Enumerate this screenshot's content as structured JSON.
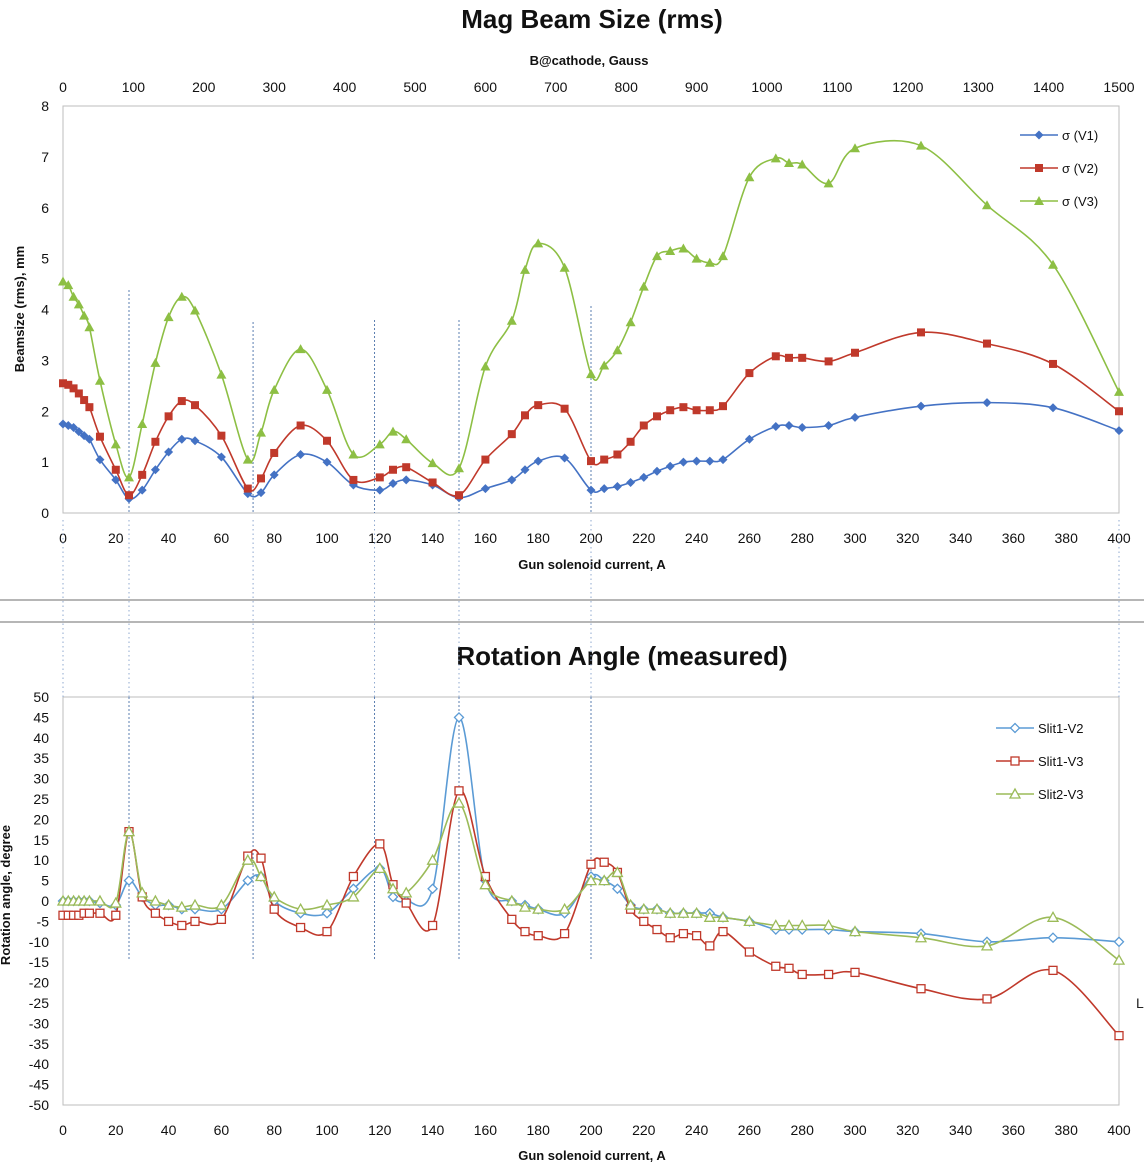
{
  "edge_label": "L",
  "chart_data": [
    {
      "type": "line",
      "title": "Mag Beam Size (rms)",
      "top_axis_label": "B@cathode, Gauss",
      "top_axis_ticks": [
        "0",
        "100",
        "200",
        "300",
        "400",
        "500",
        "600",
        "700",
        "800",
        "900",
        "1000",
        "1100",
        "1200",
        "1300",
        "1400",
        "1500"
      ],
      "xlabel": "Gun solenoid current, A",
      "ylabel": "Beamsize (rms), mm",
      "xlim": [
        0,
        400
      ],
      "ylim": [
        0,
        8
      ],
      "x_ticks": [
        "0",
        "20",
        "40",
        "60",
        "80",
        "100",
        "120",
        "140",
        "160",
        "180",
        "200",
        "220",
        "240",
        "260",
        "280",
        "300",
        "320",
        "340",
        "360",
        "380",
        "400"
      ],
      "y_ticks": [
        "0",
        "1",
        "2",
        "3",
        "4",
        "5",
        "6",
        "7",
        "8"
      ],
      "grid": false,
      "legend_position": "top-right",
      "series": [
        {
          "name": "σ (V1)",
          "color": "#4472c4",
          "marker": "diamond",
          "x": [
            0,
            2,
            4,
            6,
            8,
            10,
            14,
            20,
            25,
            30,
            35,
            40,
            45,
            50,
            60,
            70,
            75,
            80,
            90,
            100,
            110,
            120,
            125,
            130,
            140,
            150,
            160,
            170,
            175,
            180,
            190,
            200,
            205,
            210,
            215,
            220,
            225,
            230,
            235,
            240,
            245,
            250,
            260,
            270,
            275,
            280,
            290,
            300,
            325,
            350,
            375,
            400
          ],
          "y": [
            1.75,
            1.72,
            1.68,
            1.6,
            1.52,
            1.45,
            1.05,
            0.65,
            0.28,
            0.45,
            0.85,
            1.2,
            1.45,
            1.42,
            1.1,
            0.38,
            0.4,
            0.75,
            1.15,
            1.0,
            0.55,
            0.45,
            0.58,
            0.65,
            0.55,
            0.3,
            0.48,
            0.65,
            0.85,
            1.02,
            1.08,
            0.45,
            0.48,
            0.52,
            0.6,
            0.7,
            0.82,
            0.92,
            1.0,
            1.02,
            1.02,
            1.05,
            1.45,
            1.7,
            1.72,
            1.68,
            1.72,
            1.88,
            2.1,
            2.17,
            2.07,
            1.62
          ]
        },
        {
          "name": "σ (V2)",
          "color": "#c0392b",
          "marker": "square",
          "x": [
            0,
            2,
            4,
            6,
            8,
            10,
            14,
            20,
            25,
            30,
            35,
            40,
            45,
            50,
            60,
            70,
            75,
            80,
            90,
            100,
            110,
            120,
            125,
            130,
            140,
            150,
            160,
            170,
            175,
            180,
            190,
            200,
            205,
            210,
            215,
            220,
            225,
            230,
            235,
            240,
            245,
            250,
            260,
            270,
            275,
            280,
            290,
            300,
            325,
            350,
            375,
            400
          ],
          "y": [
            2.55,
            2.52,
            2.45,
            2.35,
            2.22,
            2.08,
            1.5,
            0.85,
            0.35,
            0.75,
            1.4,
            1.9,
            2.2,
            2.12,
            1.52,
            0.48,
            0.68,
            1.18,
            1.72,
            1.42,
            0.65,
            0.7,
            0.85,
            0.9,
            0.6,
            0.35,
            1.05,
            1.55,
            1.92,
            2.12,
            2.05,
            1.02,
            1.05,
            1.15,
            1.4,
            1.72,
            1.9,
            2.02,
            2.08,
            2.02,
            2.02,
            2.1,
            2.75,
            3.08,
            3.05,
            3.05,
            2.98,
            3.15,
            3.55,
            3.33,
            2.93,
            2.0
          ]
        },
        {
          "name": "σ (V3)",
          "color": "#8dbf44",
          "marker": "triangle",
          "x": [
            0,
            2,
            4,
            6,
            8,
            10,
            14,
            20,
            25,
            30,
            35,
            40,
            45,
            50,
            60,
            70,
            75,
            80,
            90,
            100,
            110,
            120,
            125,
            130,
            140,
            150,
            160,
            170,
            175,
            180,
            190,
            200,
            205,
            210,
            215,
            220,
            225,
            230,
            235,
            240,
            245,
            250,
            260,
            270,
            275,
            280,
            290,
            300,
            325,
            350,
            375,
            400
          ],
          "y": [
            4.55,
            4.48,
            4.25,
            4.1,
            3.88,
            3.65,
            2.6,
            1.35,
            0.7,
            1.75,
            2.95,
            3.85,
            4.25,
            3.98,
            2.72,
            1.05,
            1.58,
            2.42,
            3.22,
            2.42,
            1.15,
            1.35,
            1.6,
            1.45,
            0.98,
            0.88,
            2.88,
            3.78,
            4.78,
            5.3,
            4.82,
            2.73,
            2.9,
            3.2,
            3.75,
            4.45,
            5.05,
            5.15,
            5.2,
            5.0,
            4.92,
            5.05,
            6.6,
            6.97,
            6.88,
            6.85,
            6.48,
            7.17,
            7.22,
            6.05,
            4.88,
            2.38
          ]
        }
      ],
      "vertical_markers": [
        25,
        72,
        118,
        150,
        200
      ]
    },
    {
      "type": "line",
      "title": "Rotation Angle (measured)",
      "xlabel": "Gun solenoid current, A",
      "ylabel": "Rotation angle, degree",
      "xlim": [
        0,
        400
      ],
      "ylim": [
        -50,
        50
      ],
      "x_ticks": [
        "0",
        "20",
        "40",
        "60",
        "80",
        "100",
        "120",
        "140",
        "160",
        "180",
        "200",
        "220",
        "240",
        "260",
        "280",
        "300",
        "320",
        "340",
        "360",
        "380",
        "400"
      ],
      "y_ticks": [
        "50",
        "45",
        "40",
        "35",
        "30",
        "25",
        "20",
        "15",
        "10",
        "5",
        "0",
        "-5",
        "-10",
        "-15",
        "-20",
        "-25",
        "-30",
        "-35",
        "-40",
        "-45",
        "-50"
      ],
      "grid": false,
      "legend_position": "top-right",
      "series": [
        {
          "name": "Slit1-V2",
          "color": "#5b9bd5",
          "marker": "diamond-open",
          "x": [
            0,
            2,
            4,
            6,
            8,
            10,
            14,
            20,
            25,
            30,
            35,
            40,
            45,
            50,
            60,
            70,
            75,
            80,
            90,
            100,
            110,
            120,
            125,
            130,
            140,
            150,
            160,
            170,
            175,
            180,
            190,
            200,
            205,
            210,
            215,
            220,
            225,
            230,
            235,
            240,
            245,
            250,
            260,
            270,
            275,
            280,
            290,
            300,
            325,
            350,
            375,
            400
          ],
          "y": [
            0,
            0,
            0,
            0,
            0,
            0,
            -0.5,
            -1,
            5,
            1,
            -1,
            -1,
            -2,
            -2,
            -2,
            5,
            6,
            0,
            -3,
            -3,
            3,
            8,
            1,
            0,
            3,
            45,
            5,
            0,
            -1,
            -2,
            -3,
            6,
            5,
            3,
            -1,
            -2,
            -2,
            -3,
            -3,
            -3,
            -3,
            -4,
            -5,
            -7,
            -7,
            -7,
            -7,
            -7.5,
            -8,
            -10,
            -9,
            -10
          ]
        },
        {
          "name": "Slit1-V3",
          "color": "#c0392b",
          "marker": "square-open",
          "x": [
            0,
            2,
            4,
            6,
            8,
            10,
            14,
            20,
            25,
            30,
            35,
            40,
            45,
            50,
            60,
            70,
            75,
            80,
            90,
            100,
            110,
            120,
            125,
            130,
            140,
            150,
            160,
            170,
            175,
            180,
            190,
            200,
            205,
            210,
            215,
            220,
            225,
            230,
            235,
            240,
            245,
            250,
            260,
            270,
            275,
            280,
            290,
            300,
            325,
            350,
            375,
            400
          ],
          "y": [
            -3.5,
            -3.5,
            -3.5,
            -3.5,
            -3,
            -3,
            -3,
            -3.5,
            17,
            1,
            -3,
            -5,
            -6,
            -5,
            -4.5,
            11,
            10.5,
            -2,
            -6.5,
            -7.5,
            6,
            14,
            4,
            -0.5,
            -6,
            27,
            6,
            -4.5,
            -7.5,
            -8.5,
            -8,
            9,
            9.5,
            7,
            -2,
            -5,
            -7,
            -9,
            -8,
            -8.5,
            -11,
            -7.5,
            -12.5,
            -16,
            -16.5,
            -18,
            -18,
            -17.5,
            -21.5,
            -24,
            -17,
            -33
          ]
        },
        {
          "name": "Slit2-V3",
          "color": "#9bbb59",
          "marker": "triangle-open",
          "x": [
            0,
            2,
            4,
            6,
            8,
            10,
            14,
            20,
            25,
            30,
            35,
            40,
            45,
            50,
            60,
            70,
            75,
            80,
            90,
            100,
            110,
            120,
            125,
            130,
            140,
            150,
            160,
            170,
            175,
            180,
            190,
            200,
            205,
            210,
            215,
            220,
            225,
            230,
            235,
            240,
            245,
            250,
            260,
            270,
            275,
            280,
            290,
            300,
            325,
            350,
            375,
            400
          ],
          "y": [
            0,
            0,
            0,
            0,
            0,
            0,
            0,
            -0.5,
            17,
            2,
            0,
            -1,
            -1.5,
            -1,
            -1,
            10,
            6,
            1,
            -2,
            -1,
            1,
            8,
            3,
            2,
            10,
            24,
            4,
            0,
            -1.5,
            -2,
            -2,
            5,
            5,
            7,
            -1,
            -2,
            -2,
            -3,
            -3,
            -3,
            -4,
            -4,
            -5,
            -6,
            -6,
            -6,
            -6,
            -7.5,
            -9,
            -11,
            -4,
            -14.5
          ]
        }
      ],
      "vertical_markers": [
        25,
        72,
        118,
        150,
        200
      ]
    }
  ]
}
